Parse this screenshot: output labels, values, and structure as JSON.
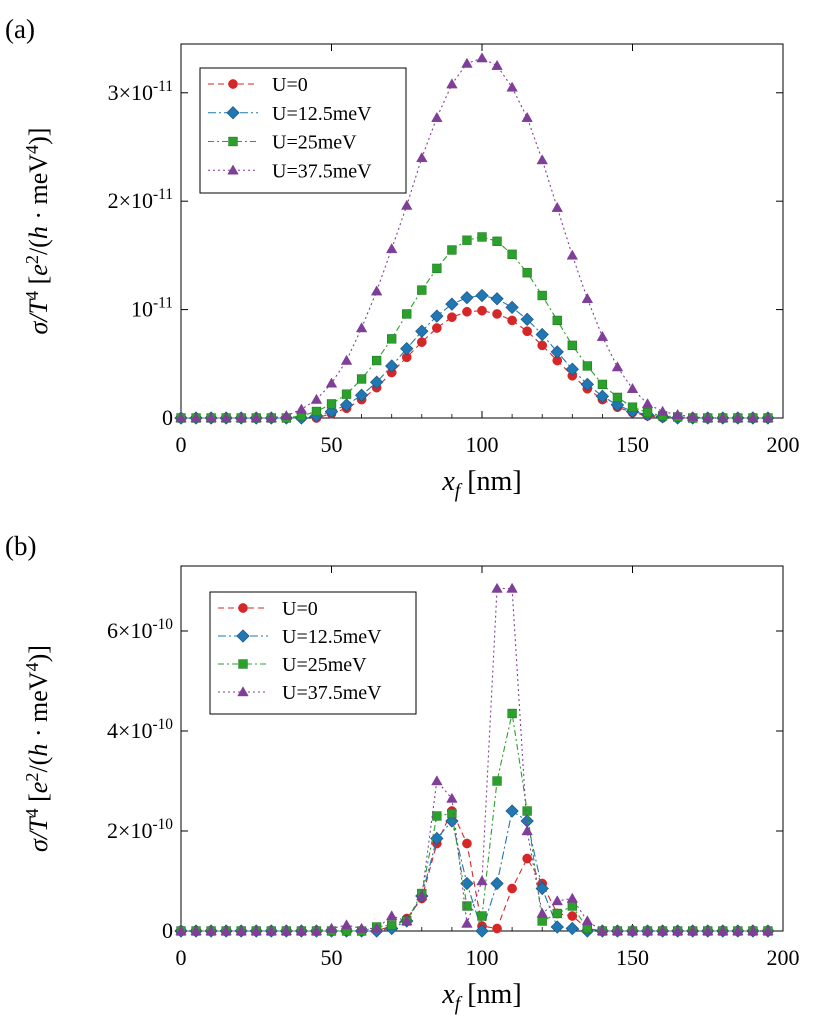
{
  "chart_data": [
    {
      "type": "line",
      "panel_label": "(a)",
      "xlabel": "x_f [nm]",
      "ylabel": "σ/T^4 [e^2/(h·meV^4)]",
      "xlim": [
        0,
        200
      ],
      "ylim": [
        0,
        3.45e-11
      ],
      "x_ticks": [
        0,
        50,
        100,
        150,
        200
      ],
      "y_ticks": [
        0,
        1e-11,
        2e-11,
        3e-11
      ],
      "y_tick_labels": [
        "0",
        "10^-11",
        "2×10^-11",
        "3×10^-11"
      ],
      "legend_position": "top-left",
      "grid": false,
      "series": [
        {
          "name": "U=0",
          "color": "#d62728",
          "marker": "circle",
          "dash": "6,4",
          "x": [
            0,
            5,
            10,
            15,
            20,
            25,
            30,
            35,
            40,
            45,
            50,
            55,
            60,
            65,
            70,
            75,
            80,
            85,
            90,
            95,
            100,
            105,
            110,
            115,
            120,
            125,
            130,
            135,
            140,
            145,
            150,
            155,
            160,
            165,
            170,
            175,
            180,
            185,
            190,
            195
          ],
          "y": [
            0,
            0,
            0,
            0,
            0,
            0,
            0,
            0,
            0,
            2e-15,
            4e-13,
            9e-13,
            1.7e-12,
            2.8e-12,
            4.2e-12,
            5.6e-12,
            7e-12,
            8.3e-12,
            9.3e-12,
            9.8e-12,
            9.9e-12,
            9.6e-12,
            9e-12,
            8e-12,
            6.7e-12,
            5.3e-12,
            3.9e-12,
            2.7e-12,
            1.7e-12,
            1e-12,
            5e-13,
            2e-13,
            3e-14,
            0,
            0,
            0,
            0,
            0,
            0,
            0
          ]
        },
        {
          "name": "U=12.5meV",
          "color": "#1f77b4",
          "marker": "diamond",
          "dash": "8,3,2,3",
          "x": [
            0,
            5,
            10,
            15,
            20,
            25,
            30,
            35,
            40,
            45,
            50,
            55,
            60,
            65,
            70,
            75,
            80,
            85,
            90,
            95,
            100,
            105,
            110,
            115,
            120,
            125,
            130,
            135,
            140,
            145,
            150,
            155,
            160,
            165,
            170,
            175,
            180,
            185,
            190,
            195
          ],
          "y": [
            0,
            0,
            0,
            0,
            0,
            0,
            0,
            0,
            0,
            2e-13,
            6e-13,
            1.2e-12,
            2.1e-12,
            3.3e-12,
            4.8e-12,
            6.4e-12,
            8e-12,
            9.4e-12,
            1.05e-11,
            1.11e-11,
            1.13e-11,
            1.1e-11,
            1.02e-11,
            9.1e-12,
            7.7e-12,
            6.1e-12,
            4.5e-12,
            3.1e-12,
            2e-12,
            1.2e-12,
            6e-13,
            3e-13,
            1e-13,
            0,
            0,
            0,
            0,
            0,
            0,
            0
          ]
        },
        {
          "name": "U=25meV",
          "color": "#2ca02c",
          "marker": "square",
          "dash": "6,3,2,3",
          "x": [
            0,
            5,
            10,
            15,
            20,
            25,
            30,
            35,
            40,
            45,
            50,
            55,
            60,
            65,
            70,
            75,
            80,
            85,
            90,
            95,
            100,
            105,
            110,
            115,
            120,
            125,
            130,
            135,
            140,
            145,
            150,
            155,
            160,
            165,
            170,
            175,
            180,
            185,
            190,
            195
          ],
          "y": [
            0,
            0,
            0,
            0,
            0,
            0,
            0,
            0,
            2e-13,
            6e-13,
            1.3e-12,
            2.2e-12,
            3.6e-12,
            5.3e-12,
            7.3e-12,
            9.6e-12,
            1.18e-11,
            1.38e-11,
            1.55e-11,
            1.64e-11,
            1.67e-11,
            1.63e-11,
            1.51e-11,
            1.34e-11,
            1.13e-11,
            9e-12,
            6.7e-12,
            4.8e-12,
            3.1e-12,
            1.9e-12,
            1e-12,
            5e-13,
            2e-13,
            1e-13,
            0,
            0,
            0,
            0,
            0,
            0
          ]
        },
        {
          "name": "U=37.5meV",
          "color": "#7f3f98",
          "marker": "triangle",
          "dash": "2,3",
          "x": [
            0,
            5,
            10,
            15,
            20,
            25,
            30,
            35,
            40,
            45,
            50,
            55,
            60,
            65,
            70,
            75,
            80,
            85,
            90,
            95,
            100,
            105,
            110,
            115,
            120,
            125,
            130,
            135,
            140,
            145,
            150,
            155,
            160,
            165,
            170,
            175,
            180,
            185,
            190,
            195
          ],
          "y": [
            0,
            0,
            0,
            0,
            0,
            0,
            0,
            2e-13,
            8e-13,
            1.7e-12,
            3.2e-12,
            5.3e-12,
            8.3e-12,
            1.17e-11,
            1.56e-11,
            1.96e-11,
            2.4e-11,
            2.77e-11,
            3.08e-11,
            3.27e-11,
            3.32e-11,
            3.25e-11,
            3.05e-11,
            2.77e-11,
            2.38e-11,
            1.94e-11,
            1.5e-11,
            1.1e-11,
            7.5e-12,
            4.7e-12,
            2.7e-12,
            1.3e-12,
            6e-13,
            3e-13,
            1e-13,
            0,
            0,
            0,
            0,
            0
          ]
        }
      ]
    },
    {
      "type": "line",
      "panel_label": "(b)",
      "xlabel": "x_f [nm]",
      "ylabel": "σ/T^4 [e^2/(h·meV^4)]",
      "xlim": [
        0,
        200
      ],
      "ylim": [
        0,
        7.3e-10
      ],
      "x_ticks": [
        0,
        50,
        100,
        150,
        200
      ],
      "y_ticks": [
        0,
        2e-10,
        4e-10,
        6e-10
      ],
      "y_tick_labels": [
        "0",
        "2×10^-10",
        "4×10^-10",
        "6×10^-10"
      ],
      "legend_position": "top-left",
      "grid": false,
      "series": [
        {
          "name": "U=0",
          "color": "#d62728",
          "marker": "circle",
          "dash": "6,4",
          "x": [
            0,
            5,
            10,
            15,
            20,
            25,
            30,
            35,
            40,
            45,
            50,
            55,
            60,
            65,
            70,
            75,
            80,
            85,
            90,
            95,
            100,
            105,
            110,
            115,
            120,
            125,
            130,
            135,
            140,
            145,
            150,
            155,
            160,
            165,
            170,
            175,
            180,
            185,
            190,
            195
          ],
          "y": [
            0,
            0,
            0,
            0,
            0,
            0,
            0,
            0,
            0,
            0,
            0,
            0,
            0,
            2e-13,
            1e-11,
            2.5e-11,
            6.5e-11,
            1.75e-10,
            2.4e-10,
            1.75e-10,
            1e-11,
            5e-12,
            8.5e-11,
            1.45e-10,
            9.5e-11,
            3.5e-11,
            3e-11,
            5e-12,
            0,
            0,
            0,
            0,
            0,
            0,
            0,
            0,
            0,
            0,
            0,
            0
          ]
        },
        {
          "name": "U=12.5meV",
          "color": "#1f77b4",
          "marker": "diamond",
          "dash": "8,3,2,3",
          "x": [
            0,
            5,
            10,
            15,
            20,
            25,
            30,
            35,
            40,
            45,
            50,
            55,
            60,
            65,
            70,
            75,
            80,
            85,
            90,
            95,
            100,
            105,
            110,
            115,
            120,
            125,
            130,
            135,
            140,
            145,
            150,
            155,
            160,
            165,
            170,
            175,
            180,
            185,
            190,
            195
          ],
          "y": [
            0,
            0,
            0,
            0,
            0,
            0,
            0,
            0,
            0,
            0,
            0,
            0,
            0,
            0,
            5e-12,
            2e-11,
            7e-11,
            1.85e-10,
            2.2e-10,
            9.5e-11,
            0,
            9.5e-11,
            2.4e-10,
            2.2e-10,
            8.5e-11,
            8e-12,
            5e-12,
            0,
            0,
            0,
            0,
            0,
            0,
            0,
            0,
            0,
            0,
            0,
            0,
            0
          ]
        },
        {
          "name": "U=25meV",
          "color": "#2ca02c",
          "marker": "square",
          "dash": "6,3,2,3",
          "x": [
            0,
            5,
            10,
            15,
            20,
            25,
            30,
            35,
            40,
            45,
            50,
            55,
            60,
            65,
            70,
            75,
            80,
            85,
            90,
            95,
            100,
            105,
            110,
            115,
            120,
            125,
            130,
            135,
            140,
            145,
            150,
            155,
            160,
            165,
            170,
            175,
            180,
            185,
            190,
            195
          ],
          "y": [
            0,
            0,
            0,
            0,
            0,
            0,
            0,
            0,
            0,
            0,
            0,
            0,
            0,
            8e-12,
            1.2e-11,
            2e-11,
            7.5e-11,
            2.3e-10,
            2.35e-10,
            5e-11,
            3e-11,
            3e-10,
            4.35e-10,
            2.4e-10,
            2e-11,
            3.5e-11,
            5e-11,
            5e-12,
            0,
            0,
            0,
            0,
            0,
            0,
            0,
            0,
            0,
            0,
            0,
            0
          ]
        },
        {
          "name": "U=37.5meV",
          "color": "#7f3f98",
          "marker": "triangle",
          "dash": "2,3",
          "x": [
            0,
            5,
            10,
            15,
            20,
            25,
            30,
            35,
            40,
            45,
            50,
            55,
            60,
            65,
            70,
            75,
            80,
            85,
            90,
            95,
            100,
            105,
            110,
            115,
            120,
            125,
            130,
            135,
            140,
            145,
            150,
            155,
            160,
            165,
            170,
            175,
            180,
            185,
            190,
            195
          ],
          "y": [
            0,
            0,
            0,
            0,
            0,
            0,
            0,
            0,
            0,
            0,
            5e-12,
            1.2e-11,
            5e-12,
            5e-12,
            3e-11,
            2e-11,
            7e-11,
            3e-10,
            2.65e-10,
            1.5e-11,
            1e-10,
            6.85e-10,
            6.85e-10,
            2e-10,
            3.5e-11,
            6e-11,
            6.5e-11,
            2e-11,
            0,
            0,
            0,
            0,
            0,
            0,
            0,
            0,
            0,
            0,
            0,
            0
          ]
        }
      ]
    }
  ]
}
